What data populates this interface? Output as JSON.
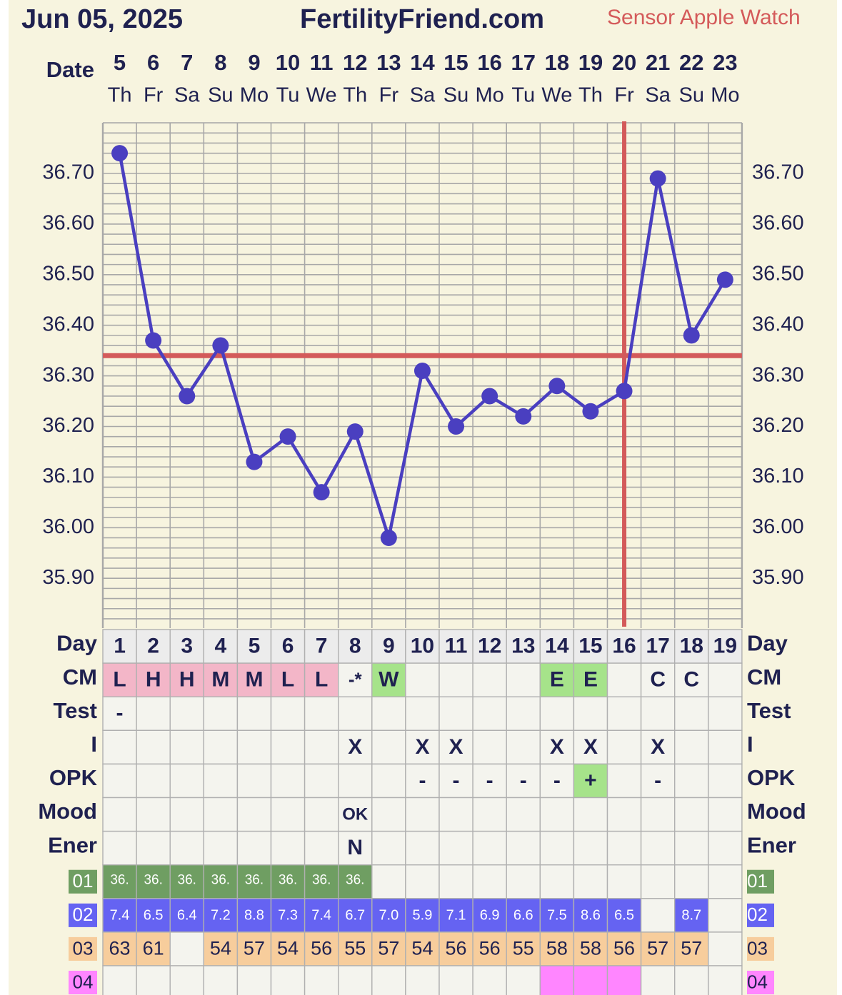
{
  "header": {
    "date": "Jun 05, 2025",
    "site": "FertilityFriend.com",
    "sensor": "Sensor Apple Watch"
  },
  "colors": {
    "paper": "#f7f4df",
    "text": "#1f2150",
    "line": "#4a3fc0",
    "coverline": "#d35a5a",
    "grid": "#a8a8a8",
    "cell": "#f4f4ee",
    "cm_pink": "#f3b6c8",
    "cm_green": "#a6e38a",
    "opk_green": "#a6e38a",
    "r01_green": "#6f9e62",
    "r02_blue": "#6563f2",
    "r03_peach": "#f7cd9c",
    "r04_magenta": "#ff86ff",
    "sensor_red": "#d45a5a"
  },
  "chart_data": {
    "type": "line",
    "row_label_date": "Date",
    "dates": [
      "5",
      "6",
      "7",
      "8",
      "9",
      "10",
      "11",
      "12",
      "13",
      "14",
      "15",
      "16",
      "17",
      "18",
      "19",
      "20",
      "21",
      "22",
      "23"
    ],
    "weekdays": [
      "Th",
      "Fr",
      "Sa",
      "Su",
      "Mo",
      "Tu",
      "We",
      "Th",
      "Fr",
      "Sa",
      "Su",
      "Mo",
      "Tu",
      "We",
      "Th",
      "Fr",
      "Sa",
      "Su",
      "Mo"
    ],
    "y_ticks": [
      "36.70",
      "36.60",
      "36.50",
      "36.40",
      "36.30",
      "36.20",
      "36.10",
      "36.00",
      "35.90"
    ],
    "ylim": [
      35.82,
      36.8
    ],
    "temperatures": [
      36.74,
      36.37,
      36.26,
      36.36,
      36.13,
      36.18,
      36.07,
      36.19,
      35.98,
      36.31,
      36.2,
      36.26,
      36.22,
      36.28,
      36.23,
      36.27,
      36.69,
      36.38,
      36.49
    ],
    "coverline": 36.34,
    "ovulation_day": 16,
    "grid": true
  },
  "rows": {
    "day": {
      "label": "Day",
      "values": [
        "1",
        "2",
        "3",
        "4",
        "5",
        "6",
        "7",
        "8",
        "9",
        "10",
        "11",
        "12",
        "13",
        "14",
        "15",
        "16",
        "17",
        "18",
        "19"
      ]
    },
    "cm": {
      "label": "CM",
      "values": [
        "L",
        "H",
        "H",
        "M",
        "M",
        "L",
        "L",
        "-*",
        "W",
        "",
        "",
        "",
        "",
        "E",
        "E",
        "",
        "C",
        "C",
        ""
      ],
      "fills": [
        "pink",
        "pink",
        "pink",
        "pink",
        "pink",
        "pink",
        "pink",
        "",
        "green",
        "",
        "",
        "",
        "",
        "green",
        "green",
        "",
        "",
        "",
        ""
      ]
    },
    "test": {
      "label": "Test",
      "values": [
        "-",
        "",
        "",
        "",
        "",
        "",
        "",
        "",
        "",
        "",
        "",
        "",
        "",
        "",
        "",
        "",
        "",
        "",
        ""
      ]
    },
    "intercourse": {
      "label": "I",
      "values": [
        "",
        "",
        "",
        "",
        "",
        "",
        "",
        "X",
        "",
        "X",
        "X",
        "",
        "",
        "X",
        "X",
        "",
        "X",
        "",
        ""
      ]
    },
    "opk": {
      "label": "OPK",
      "values": [
        "",
        "",
        "",
        "",
        "",
        "",
        "",
        "",
        "",
        "-",
        "-",
        "-",
        "-",
        "-",
        "+",
        "",
        "-",
        "",
        ""
      ],
      "fills": [
        "",
        "",
        "",
        "",
        "",
        "",
        "",
        "",
        "",
        "",
        "",
        "",
        "",
        "",
        "green",
        "",
        "",
        "",
        ""
      ]
    },
    "mood": {
      "label": "Mood",
      "values": [
        "",
        "",
        "",
        "",
        "",
        "",
        "",
        "OK",
        "",
        "",
        "",
        "",
        "",
        "",
        "",
        "",
        "",
        "",
        ""
      ]
    },
    "energy": {
      "label": "Ener",
      "values": [
        "",
        "",
        "",
        "",
        "",
        "",
        "",
        "N",
        "",
        "",
        "",
        "",
        "",
        "",
        "",
        "",
        "",
        "",
        ""
      ]
    },
    "r01": {
      "label": "01",
      "values": [
        "36.",
        "36.",
        "36.",
        "36.",
        "36.",
        "36.",
        "36.",
        "36.",
        "",
        "",
        "",
        "",
        "",
        "",
        "",
        "",
        "",
        "",
        ""
      ]
    },
    "r02": {
      "label": "02",
      "values": [
        "7.4",
        "6.5",
        "6.4",
        "7.2",
        "8.8",
        "7.3",
        "7.4",
        "6.7",
        "7.0",
        "5.9",
        "7.1",
        "6.9",
        "6.6",
        "7.5",
        "8.6",
        "6.5",
        "",
        "8.7",
        ""
      ]
    },
    "r03": {
      "label": "03",
      "values": [
        "63",
        "61",
        "",
        "54",
        "57",
        "54",
        "56",
        "55",
        "57",
        "54",
        "56",
        "56",
        "55",
        "58",
        "58",
        "56",
        "57",
        "57",
        ""
      ]
    },
    "r04": {
      "label": "04",
      "values": [
        "",
        "",
        "",
        "",
        "",
        "",
        "",
        "",
        "",
        "",
        "",
        "",
        "",
        "",
        "",
        "",
        "",
        "",
        ""
      ],
      "fills": [
        "",
        "",
        "",
        "",
        "",
        "",
        "",
        "",
        "",
        "",
        "",
        "",
        "",
        "magenta",
        "magenta",
        "magenta",
        "",
        "",
        ""
      ]
    }
  }
}
